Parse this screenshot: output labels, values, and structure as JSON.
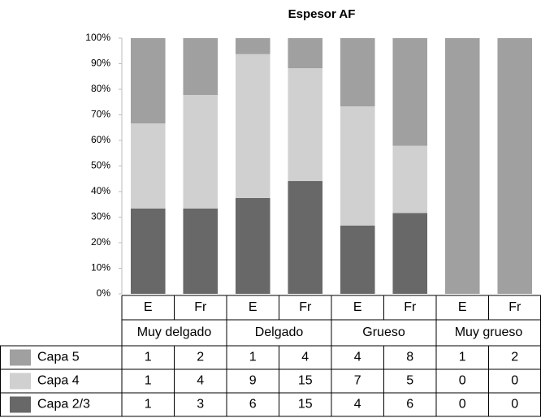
{
  "chart_data": {
    "type": "stacked_percent",
    "title": "Espesor AF",
    "categories": [
      "E",
      "Fr",
      "E",
      "Fr",
      "E",
      "Fr",
      "E",
      "Fr"
    ],
    "groups": [
      "Muy delgado",
      "Delgado",
      "Grueso",
      "Muy grueso"
    ],
    "series": [
      {
        "name": "Capa 5",
        "color": "#a0a0a0",
        "values": [
          1,
          2,
          1,
          4,
          4,
          8,
          1,
          2
        ]
      },
      {
        "name": "Capa 4",
        "color": "#d0d0d0",
        "values": [
          1,
          4,
          9,
          15,
          7,
          5,
          0,
          0
        ]
      },
      {
        "name": "Capa 2/3",
        "color": "#686868",
        "values": [
          1,
          3,
          6,
          15,
          4,
          6,
          0,
          0
        ]
      }
    ],
    "ylim": [
      0,
      100
    ],
    "yticks": [
      {
        "value": 0,
        "label": "0%"
      },
      {
        "value": 10,
        "label": "10%"
      },
      {
        "value": 20,
        "label": "20%"
      },
      {
        "value": 30,
        "label": "30%"
      },
      {
        "value": 40,
        "label": "40%"
      },
      {
        "value": 50,
        "label": "50%"
      },
      {
        "value": 60,
        "label": "60%"
      },
      {
        "value": 70,
        "label": "70%"
      },
      {
        "value": 80,
        "label": "80%"
      },
      {
        "value": 90,
        "label": "90%"
      },
      {
        "value": 100,
        "label": "100%"
      }
    ],
    "data_table": true
  }
}
